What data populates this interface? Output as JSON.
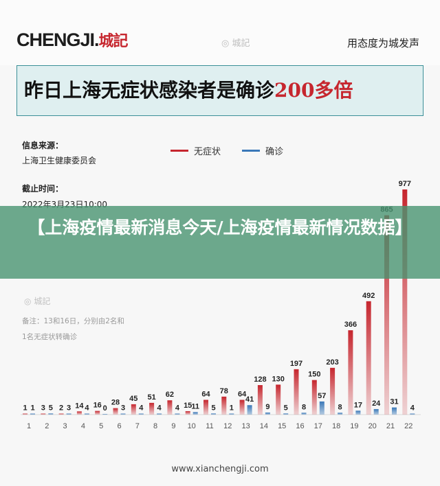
{
  "header": {
    "logo": "CHENGJI.",
    "logo_cn": "城記",
    "watermark": "城記",
    "slogan": "用态度为城发声"
  },
  "title": {
    "main": "昨日上海无症状感染者是确诊",
    "emphasis": "200多倍"
  },
  "meta": {
    "source_label": "信息来源：",
    "source_value": "上海卫生健康委员会",
    "time_label": "截止时间：",
    "time_value": "2022年3月23日10:00"
  },
  "note": {
    "line1": "备注：13和16日，分别由2名和",
    "line2": "1名无症状转确诊"
  },
  "watermark_mid": "城記",
  "banner": {
    "text": "【上海疫情最新消息今天/上海疫情最新情况数据】"
  },
  "footer": {
    "url": "www.xianchengji.com"
  },
  "colors": {
    "asymptomatic": "#c6262e",
    "confirmed": "#3a78b8",
    "title_border": "#3a8f97",
    "banner": "#4a9470"
  },
  "chart_data": {
    "type": "bar",
    "categories": [
      "1",
      "2",
      "3",
      "4",
      "5",
      "6",
      "7",
      "8",
      "9",
      "10",
      "11",
      "12",
      "13",
      "14",
      "15",
      "16",
      "17",
      "18",
      "19",
      "20",
      "21",
      "22"
    ],
    "series": [
      {
        "name": "无症状",
        "values": [
          1,
          3,
          2,
          14,
          16,
          28,
          45,
          51,
          62,
          15,
          64,
          78,
          64,
          128,
          130,
          197,
          150,
          203,
          366,
          492,
          865,
          977
        ]
      },
      {
        "name": "确诊",
        "values": [
          1,
          5,
          3,
          4,
          0,
          3,
          4,
          4,
          4,
          11,
          5,
          1,
          41,
          9,
          5,
          8,
          57,
          8,
          17,
          24,
          31,
          4
        ]
      }
    ],
    "ylim": [
      0,
      977
    ],
    "grid": false,
    "legend": "top"
  }
}
